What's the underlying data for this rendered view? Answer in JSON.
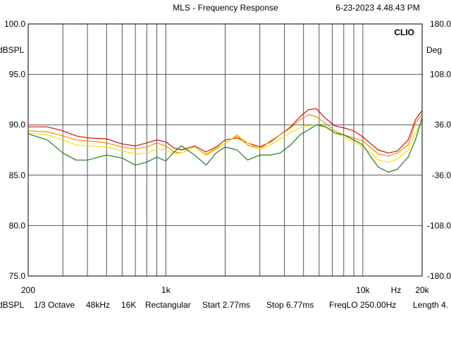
{
  "header": {
    "title": "MLS - Frequency Response",
    "timestamp": "6-23-2023 4.48.43 PM"
  },
  "brand": "CLIO",
  "status_bar": {
    "unit": "dBSPL",
    "octave": "1/3 Octave",
    "rate": "48kHz",
    "size": "16K",
    "window": "Rectangular",
    "start": "Start 2.77ms",
    "stop": "Stop 6.77ms",
    "freqlo": "FreqLO 250.00Hz",
    "length": "Length 4."
  },
  "chart_data": {
    "type": "line",
    "x_scale": "log",
    "xlim": [
      200,
      20000
    ],
    "ylim": [
      75,
      100
    ],
    "y2lim": [
      -180,
      180
    ],
    "grid": true,
    "ylabel": "dBSPL",
    "y2label": "Deg",
    "xunit": "Hz",
    "x_tick_labels": [
      {
        "value": 200,
        "label": "200"
      },
      {
        "value": 1000,
        "label": "1k"
      },
      {
        "value": 10000,
        "label": "10k"
      },
      {
        "value": 20000,
        "label": "20k"
      }
    ],
    "y_ticks": [
      {
        "value": 100,
        "label": "100.0"
      },
      {
        "value": 95,
        "label": "95.0"
      },
      {
        "value": 90,
        "label": "90.0"
      },
      {
        "value": 85,
        "label": "85.0"
      },
      {
        "value": 80,
        "label": "80.0"
      },
      {
        "value": 75,
        "label": "75.0"
      }
    ],
    "y2_ticks": [
      {
        "value": 180,
        "label": "180.0"
      },
      {
        "value": 108,
        "label": "108.0"
      },
      {
        "value": 36,
        "label": "36.0"
      },
      {
        "value": -36,
        "label": "-36.0"
      },
      {
        "value": -108,
        "label": "-108.0"
      },
      {
        "value": -180,
        "label": "-180.0"
      }
    ],
    "series": [
      {
        "color": "#cc1111",
        "x": [
          200,
          250,
          300,
          350,
          400,
          500,
          600,
          700,
          800,
          900,
          1000,
          1100,
          1200,
          1400,
          1600,
          1800,
          2000,
          2300,
          2600,
          3000,
          3400,
          3800,
          4300,
          4800,
          5300,
          5800,
          6500,
          7200,
          8000,
          9000,
          10000,
          11000,
          12000,
          13500,
          15000,
          17000,
          18500,
          20000
        ],
        "y": [
          89.8,
          89.8,
          89.4,
          88.9,
          88.7,
          88.6,
          88.1,
          87.9,
          88.2,
          88.5,
          88.3,
          87.7,
          87.5,
          87.9,
          87.3,
          87.8,
          88.5,
          88.7,
          88.2,
          87.8,
          88.3,
          89.0,
          89.8,
          90.8,
          91.5,
          91.6,
          90.6,
          89.9,
          89.7,
          89.4,
          88.8,
          88.1,
          87.5,
          87.2,
          87.4,
          88.5,
          90.5,
          91.4
        ]
      },
      {
        "color": "#f08c00",
        "x": [
          200,
          250,
          300,
          350,
          400,
          500,
          600,
          700,
          800,
          900,
          1000,
          1100,
          1200,
          1400,
          1600,
          1800,
          2000,
          2300,
          2600,
          3000,
          3400,
          3800,
          4300,
          4800,
          5300,
          5800,
          6500,
          7200,
          8000,
          9000,
          10000,
          11000,
          12000,
          13500,
          15000,
          17000,
          18500,
          20000
        ],
        "y": [
          89.4,
          89.3,
          88.9,
          88.5,
          88.4,
          88.2,
          87.8,
          87.6,
          87.8,
          88.2,
          87.9,
          87.3,
          87.2,
          87.8,
          87.0,
          87.6,
          88.2,
          88.9,
          88.0,
          87.6,
          88.4,
          89.0,
          89.7,
          90.5,
          91.0,
          90.8,
          90.1,
          89.4,
          89.0,
          88.7,
          88.4,
          87.7,
          87.1,
          86.9,
          87.2,
          88.0,
          90.2,
          91.0
        ]
      },
      {
        "color": "#f2e200",
        "x": [
          200,
          250,
          300,
          350,
          400,
          500,
          600,
          700,
          800,
          900,
          1000,
          1100,
          1200,
          1400,
          1600,
          1800,
          2000,
          2300,
          2600,
          3000,
          3400,
          3800,
          4300,
          4800,
          5300,
          5800,
          6500,
          7200,
          8000,
          9000,
          10000,
          11000,
          12000,
          13500,
          15000,
          17000,
          18500,
          20000
        ],
        "y": [
          89.2,
          89.0,
          88.5,
          88.0,
          87.9,
          87.8,
          87.4,
          87.1,
          87.2,
          87.6,
          87.5,
          87.1,
          87.2,
          87.8,
          87.1,
          87.7,
          88.2,
          89.0,
          88.2,
          87.6,
          88.0,
          88.6,
          89.2,
          89.7,
          89.9,
          90.0,
          89.7,
          89.2,
          88.8,
          88.3,
          87.8,
          87.2,
          86.5,
          86.3,
          86.6,
          87.5,
          89.2,
          90.5
        ]
      },
      {
        "color": "#1e7a1e",
        "x": [
          200,
          250,
          300,
          350,
          400,
          500,
          600,
          700,
          800,
          900,
          1000,
          1100,
          1200,
          1400,
          1600,
          1800,
          2000,
          2300,
          2600,
          3000,
          3400,
          3800,
          4300,
          4800,
          5300,
          5800,
          6500,
          7200,
          8000,
          9000,
          10000,
          11000,
          12000,
          13500,
          15000,
          17000,
          18500,
          20000
        ],
        "y": [
          89.1,
          88.5,
          87.2,
          86.5,
          86.5,
          87.0,
          86.7,
          86.0,
          86.3,
          86.8,
          86.4,
          87.3,
          87.9,
          87.0,
          86.0,
          87.2,
          87.8,
          87.5,
          86.5,
          87.0,
          87.0,
          87.2,
          88.0,
          89.0,
          89.5,
          90.0,
          89.8,
          89.2,
          89.0,
          88.5,
          88.0,
          86.8,
          85.8,
          85.3,
          85.6,
          86.8,
          88.5,
          90.7
        ]
      }
    ]
  }
}
